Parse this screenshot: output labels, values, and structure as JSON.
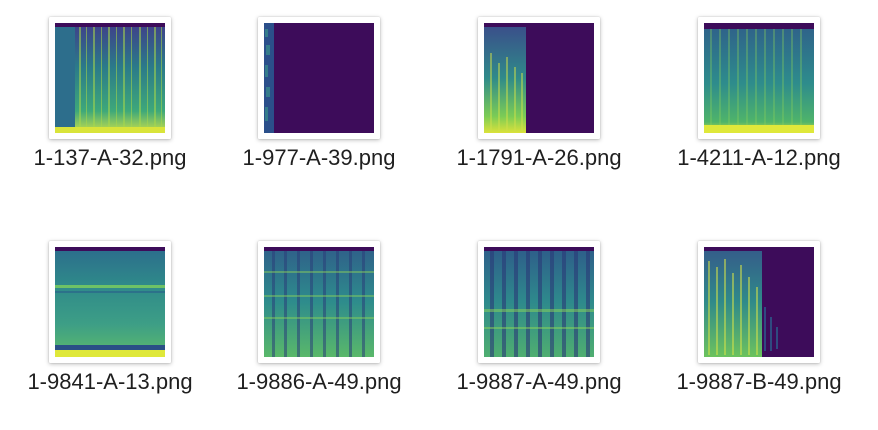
{
  "window": {
    "view": "icon-view"
  },
  "files": [
    {
      "name": "1-137-A-32.png",
      "icon": "spectrogram-thumbnail-icon"
    },
    {
      "name": "1-977-A-39.png",
      "icon": "spectrogram-thumbnail-icon"
    },
    {
      "name": "1-1791-A-26.png",
      "icon": "spectrogram-thumbnail-icon"
    },
    {
      "name": "1-4211-A-12.png",
      "icon": "spectrogram-thumbnail-icon"
    },
    {
      "name": "1-9841-A-13.png",
      "icon": "spectrogram-thumbnail-icon"
    },
    {
      "name": "1-9886-A-49.png",
      "icon": "spectrogram-thumbnail-icon"
    },
    {
      "name": "1-9887-A-49.png",
      "icon": "spectrogram-thumbnail-icon"
    },
    {
      "name": "1-9887-B-49.png",
      "icon": "spectrogram-thumbnail-icon"
    }
  ],
  "colors": {
    "background": "#ffffff",
    "spectro_dark": "#3d0c5a",
    "spectro_teal": "#2e8c8c",
    "spectro_green": "#5fc45a",
    "spectro_yellow": "#dde63a"
  }
}
